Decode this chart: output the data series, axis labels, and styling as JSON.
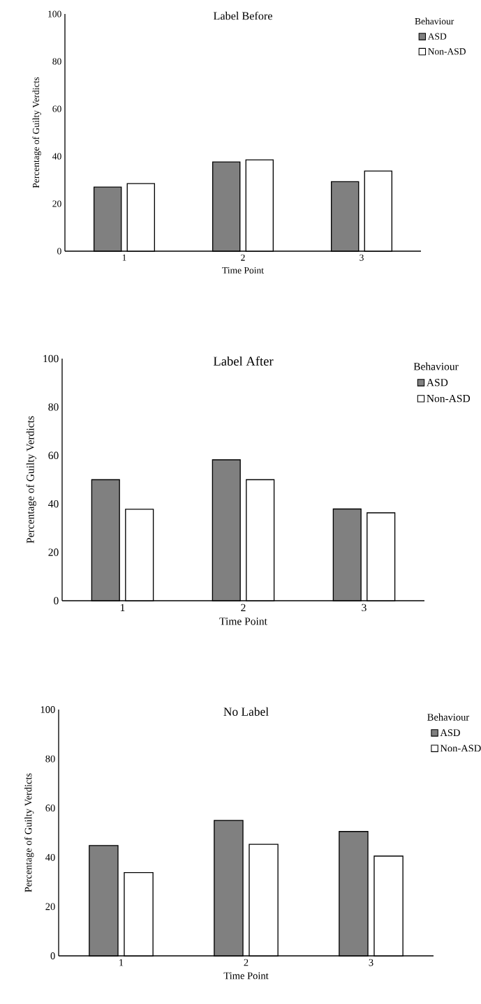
{
  "chart_data": [
    {
      "type": "bar",
      "title": "Label Before",
      "xlabel": "Time Point",
      "ylabel": "Percentage of Guilty Verdicts",
      "legend_title": "Behaviour",
      "legend": "top right",
      "categories": [
        "1",
        "2",
        "3"
      ],
      "ylim": [
        0,
        100
      ],
      "yticks": [
        0,
        20,
        40,
        60,
        80,
        100
      ],
      "series": [
        {
          "name": "ASD",
          "color": "#808080",
          "values": [
            27,
            37.6,
            29.3
          ]
        },
        {
          "name": "Non-ASD",
          "color": "#ffffff",
          "values": [
            28.5,
            38.5,
            33.8
          ]
        }
      ]
    },
    {
      "type": "bar",
      "title": "Label After",
      "xlabel": "Time Point",
      "ylabel": "Percentage of Guilty Verdicts",
      "legend_title": "Behaviour",
      "legend": "top right",
      "categories": [
        "1",
        "2",
        "3"
      ],
      "ylim": [
        0,
        100
      ],
      "yticks": [
        0,
        20,
        40,
        60,
        80,
        100
      ],
      "series": [
        {
          "name": "ASD",
          "color": "#808080",
          "values": [
            50,
            58.2,
            37.9
          ]
        },
        {
          "name": "Non-ASD",
          "color": "#ffffff",
          "values": [
            37.8,
            50,
            36.3
          ]
        }
      ]
    },
    {
      "type": "bar",
      "title": "No Label",
      "xlabel": "Time Point",
      "ylabel": "Percentage of Guilty Verdicts",
      "legend_title": "Behaviour",
      "legend": "top right",
      "categories": [
        "1",
        "2",
        "3"
      ],
      "ylim": [
        0,
        100
      ],
      "yticks": [
        0,
        20,
        40,
        60,
        80,
        100
      ],
      "series": [
        {
          "name": "ASD",
          "color": "#808080",
          "values": [
            44.8,
            55,
            50.5
          ]
        },
        {
          "name": "Non-ASD",
          "color": "#ffffff",
          "values": [
            33.8,
            45.3,
            40.5
          ]
        }
      ]
    }
  ]
}
